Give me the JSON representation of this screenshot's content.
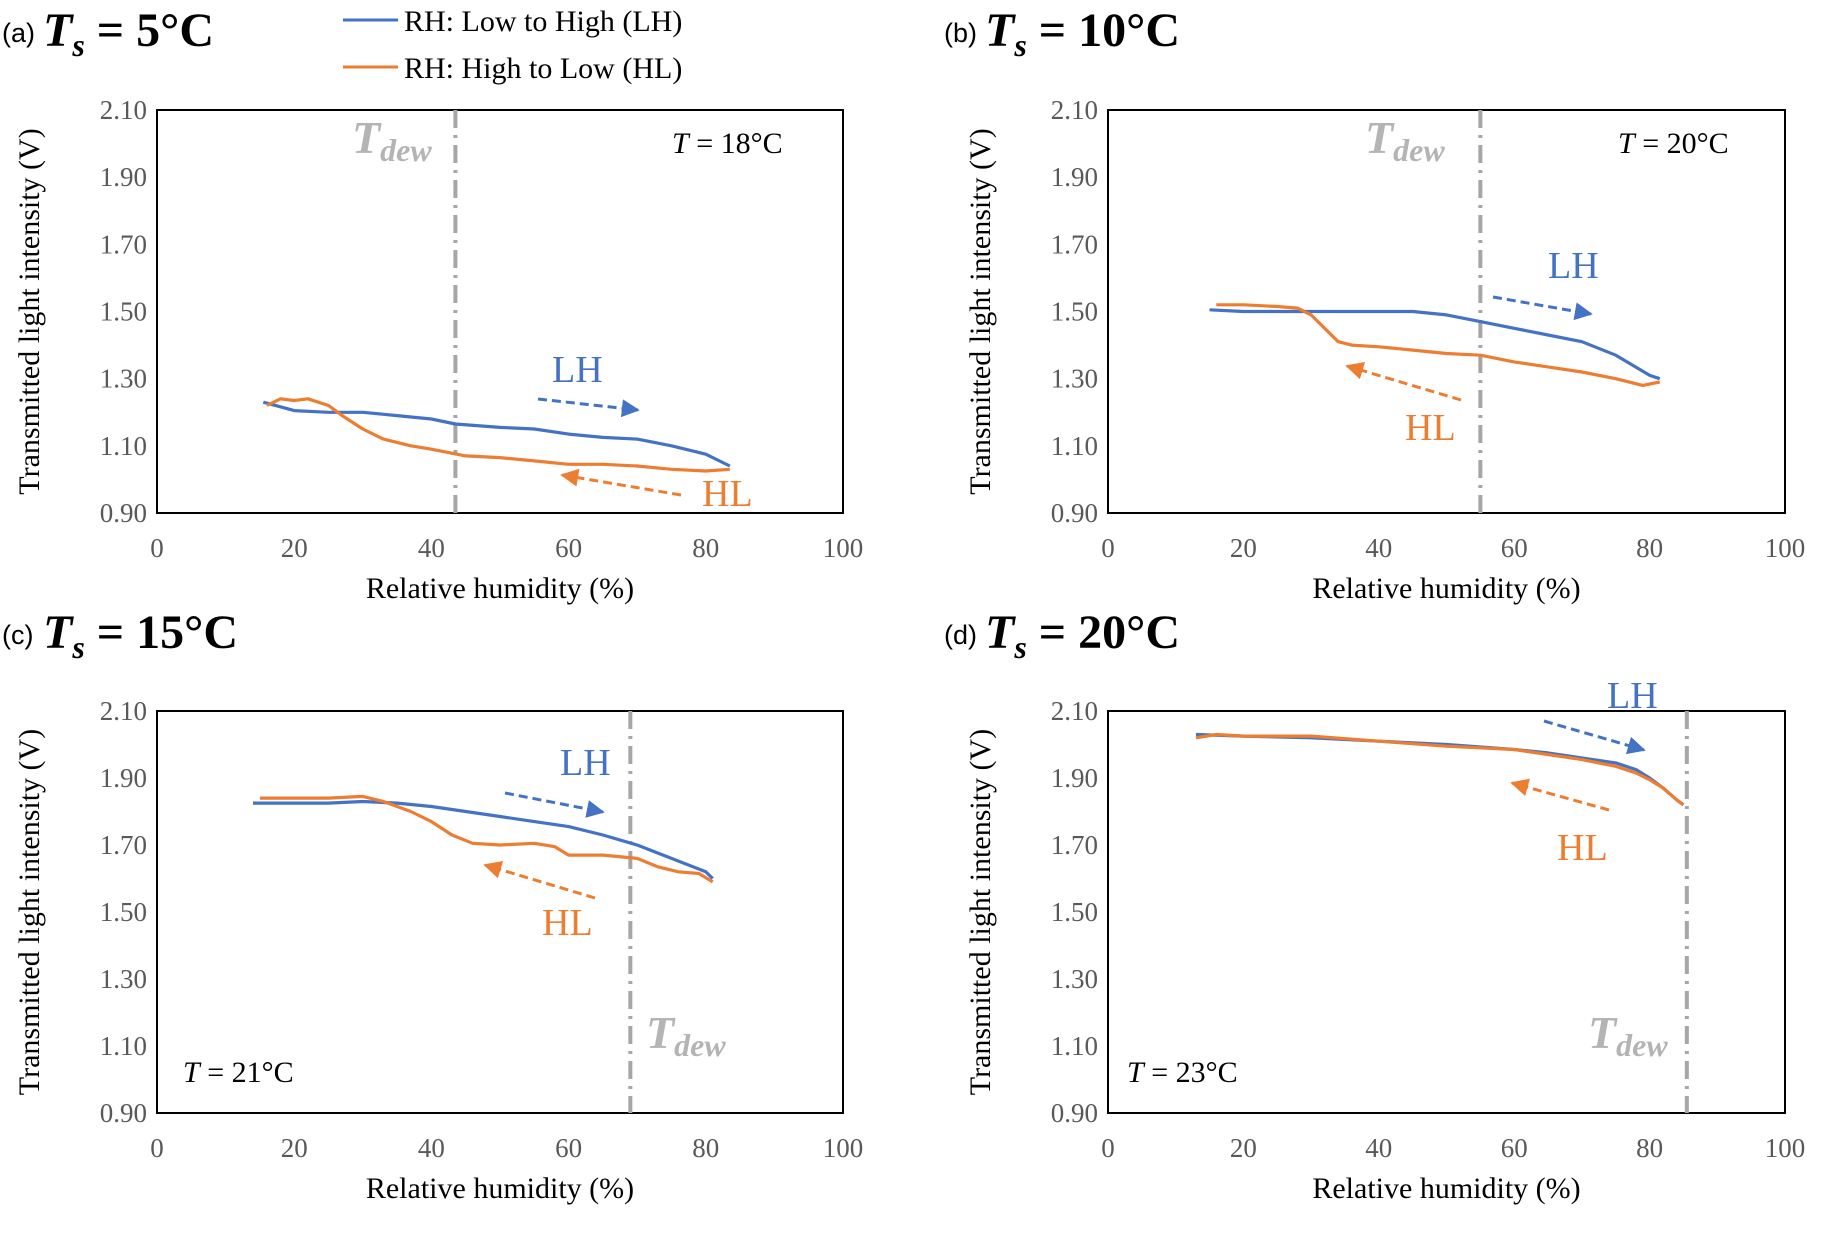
{
  "legend": {
    "items": [
      {
        "label": "RH: Low to High (LH)",
        "color": "#4472c4"
      },
      {
        "label": "RH: High to Low (HL)",
        "color": "#ed7d31"
      }
    ]
  },
  "colors": {
    "lh": "#4472c4",
    "hl": "#ed7d31",
    "dew": "#a6a6a6"
  },
  "chart_data": [
    {
      "type": "line",
      "panel": "(a)",
      "title_var": "T",
      "title_sub": "s",
      "title_val": "= 5°C",
      "condition_var": "T",
      "condition_val": " = 18°C",
      "xlabel": "Relative humidity (%)",
      "ylabel": "Transmitted light intensity (V)",
      "xlim": [
        0,
        100
      ],
      "ylim": [
        0.9,
        2.1
      ],
      "xticks": [
        "0",
        "20",
        "40",
        "60",
        "80",
        "100"
      ],
      "yticks": [
        "0.90",
        "1.10",
        "1.30",
        "1.50",
        "1.70",
        "1.90",
        "2.10"
      ],
      "dew_label_main": "T",
      "dew_label_sub": "dew",
      "dew_x": 43.5,
      "annotations": {
        "lh": "LH",
        "hl": "HL"
      },
      "series": [
        {
          "name": "RH: Low to High (LH)",
          "points": [
            [
              15.5,
              1.23
            ],
            [
              20,
              1.205
            ],
            [
              25,
              1.2
            ],
            [
              30,
              1.2
            ],
            [
              35,
              1.19
            ],
            [
              40,
              1.18
            ],
            [
              43.5,
              1.165
            ],
            [
              50,
              1.155
            ],
            [
              55,
              1.15
            ],
            [
              60,
              1.135
            ],
            [
              65,
              1.125
            ],
            [
              70,
              1.12
            ],
            [
              75,
              1.1
            ],
            [
              80,
              1.075
            ],
            [
              83.5,
              1.04
            ]
          ]
        },
        {
          "name": "RH: High to Low (HL)",
          "points": [
            [
              16,
              1.22
            ],
            [
              18,
              1.24
            ],
            [
              20,
              1.235
            ],
            [
              22,
              1.24
            ],
            [
              25,
              1.22
            ],
            [
              27,
              1.19
            ],
            [
              30,
              1.15
            ],
            [
              33,
              1.12
            ],
            [
              37,
              1.1
            ],
            [
              40,
              1.09
            ],
            [
              45,
              1.07
            ],
            [
              50,
              1.065
            ],
            [
              55,
              1.055
            ],
            [
              60,
              1.045
            ],
            [
              65,
              1.045
            ],
            [
              70,
              1.04
            ],
            [
              75,
              1.03
            ],
            [
              80,
              1.025
            ],
            [
              83.5,
              1.03
            ]
          ]
        }
      ]
    },
    {
      "type": "line",
      "panel": "(b)",
      "title_var": "T",
      "title_sub": "s",
      "title_val": "= 10°C",
      "condition_var": "T",
      "condition_val": " = 20°C",
      "xlabel": "Relative humidity (%)",
      "ylabel": "Transmitted light intensity (V)",
      "xlim": [
        0,
        100
      ],
      "ylim": [
        0.9,
        2.1
      ],
      "xticks": [
        "0",
        "20",
        "40",
        "60",
        "80",
        "100"
      ],
      "yticks": [
        "0.90",
        "1.10",
        "1.30",
        "1.50",
        "1.70",
        "1.90",
        "2.10"
      ],
      "dew_label_main": "T",
      "dew_label_sub": "dew",
      "dew_x": 55,
      "annotations": {
        "lh": "LH",
        "hl": "HL"
      },
      "series": [
        {
          "name": "RH: Low to High (LH)",
          "points": [
            [
              15,
              1.505
            ],
            [
              20,
              1.5
            ],
            [
              25,
              1.5
            ],
            [
              30,
              1.5
            ],
            [
              35,
              1.5
            ],
            [
              40,
              1.5
            ],
            [
              45,
              1.5
            ],
            [
              50,
              1.49
            ],
            [
              55,
              1.47
            ],
            [
              60,
              1.45
            ],
            [
              65,
              1.43
            ],
            [
              70,
              1.41
            ],
            [
              75,
              1.37
            ],
            [
              80,
              1.31
            ],
            [
              81.5,
              1.3
            ]
          ]
        },
        {
          "name": "RH: High to Low (HL)",
          "points": [
            [
              16,
              1.52
            ],
            [
              20,
              1.52
            ],
            [
              25,
              1.515
            ],
            [
              28,
              1.51
            ],
            [
              30,
              1.49
            ],
            [
              32,
              1.45
            ],
            [
              34,
              1.41
            ],
            [
              36,
              1.4
            ],
            [
              40,
              1.395
            ],
            [
              45,
              1.385
            ],
            [
              50,
              1.375
            ],
            [
              55,
              1.37
            ],
            [
              60,
              1.35
            ],
            [
              65,
              1.335
            ],
            [
              70,
              1.32
            ],
            [
              75,
              1.3
            ],
            [
              79,
              1.28
            ],
            [
              81.5,
              1.29
            ]
          ]
        }
      ]
    },
    {
      "type": "line",
      "panel": "(c)",
      "title_var": "T",
      "title_sub": "s",
      "title_val": "= 15°C",
      "condition_var": "T",
      "condition_val": " = 21°C",
      "xlabel": "Relative humidity (%)",
      "ylabel": "Transmitted light intensity (V)",
      "xlim": [
        0,
        100
      ],
      "ylim": [
        0.9,
        2.1
      ],
      "xticks": [
        "0",
        "20",
        "40",
        "60",
        "80",
        "100"
      ],
      "yticks": [
        "0.90",
        "1.10",
        "1.30",
        "1.50",
        "1.70",
        "1.90",
        "2.10"
      ],
      "dew_label_main": "T",
      "dew_label_sub": "dew",
      "dew_x": 69,
      "annotations": {
        "lh": "LH",
        "hl": "HL"
      },
      "series": [
        {
          "name": "RH: Low to High (LH)",
          "points": [
            [
              14,
              1.825
            ],
            [
              20,
              1.825
            ],
            [
              25,
              1.825
            ],
            [
              30,
              1.83
            ],
            [
              35,
              1.825
            ],
            [
              40,
              1.815
            ],
            [
              45,
              1.8
            ],
            [
              50,
              1.785
            ],
            [
              55,
              1.77
            ],
            [
              60,
              1.755
            ],
            [
              65,
              1.73
            ],
            [
              70,
              1.7
            ],
            [
              75,
              1.66
            ],
            [
              80,
              1.62
            ],
            [
              81,
              1.6
            ]
          ]
        },
        {
          "name": "RH: High to Low (HL)",
          "points": [
            [
              15,
              1.84
            ],
            [
              20,
              1.84
            ],
            [
              25,
              1.84
            ],
            [
              30,
              1.845
            ],
            [
              33,
              1.83
            ],
            [
              37,
              1.8
            ],
            [
              40,
              1.77
            ],
            [
              43,
              1.73
            ],
            [
              46,
              1.705
            ],
            [
              50,
              1.7
            ],
            [
              55,
              1.705
            ],
            [
              58,
              1.695
            ],
            [
              60,
              1.67
            ],
            [
              65,
              1.67
            ],
            [
              70,
              1.66
            ],
            [
              73,
              1.635
            ],
            [
              76,
              1.62
            ],
            [
              79,
              1.615
            ],
            [
              81,
              1.59
            ]
          ]
        }
      ]
    },
    {
      "type": "line",
      "panel": "(d)",
      "title_var": "T",
      "title_sub": "s",
      "title_val": "= 20°C",
      "condition_var": "T",
      "condition_val": " = 23°C",
      "xlabel": "Relative humidity (%)",
      "ylabel": "Transmitted light intensity (V)",
      "xlim": [
        0,
        100
      ],
      "ylim": [
        0.9,
        2.1
      ],
      "xticks": [
        "0",
        "20",
        "40",
        "60",
        "80",
        "100"
      ],
      "yticks": [
        "0.90",
        "1.10",
        "1.30",
        "1.50",
        "1.70",
        "1.90",
        "2.10"
      ],
      "dew_label_main": "T",
      "dew_label_sub": "dew",
      "dew_x": 85.5,
      "annotations": {
        "lh": "LH",
        "hl": "HL"
      },
      "series": [
        {
          "name": "RH: Low to High (LH)",
          "points": [
            [
              13,
              2.03
            ],
            [
              20,
              2.025
            ],
            [
              30,
              2.02
            ],
            [
              40,
              2.01
            ],
            [
              50,
              2.0
            ],
            [
              60,
              1.985
            ],
            [
              65,
              1.975
            ],
            [
              70,
              1.96
            ],
            [
              75,
              1.945
            ],
            [
              78,
              1.925
            ],
            [
              80,
              1.9
            ],
            [
              82,
              1.87
            ],
            [
              84,
              1.835
            ],
            [
              85,
              1.82
            ]
          ]
        },
        {
          "name": "RH: High to Low (HL)",
          "points": [
            [
              13,
              2.02
            ],
            [
              16,
              2.03
            ],
            [
              20,
              2.025
            ],
            [
              25,
              2.025
            ],
            [
              30,
              2.025
            ],
            [
              40,
              2.01
            ],
            [
              50,
              1.995
            ],
            [
              60,
              1.985
            ],
            [
              65,
              1.97
            ],
            [
              70,
              1.955
            ],
            [
              75,
              1.935
            ],
            [
              78,
              1.915
            ],
            [
              80,
              1.895
            ],
            [
              82,
              1.87
            ],
            [
              84,
              1.835
            ],
            [
              85,
              1.82
            ]
          ]
        }
      ]
    }
  ]
}
